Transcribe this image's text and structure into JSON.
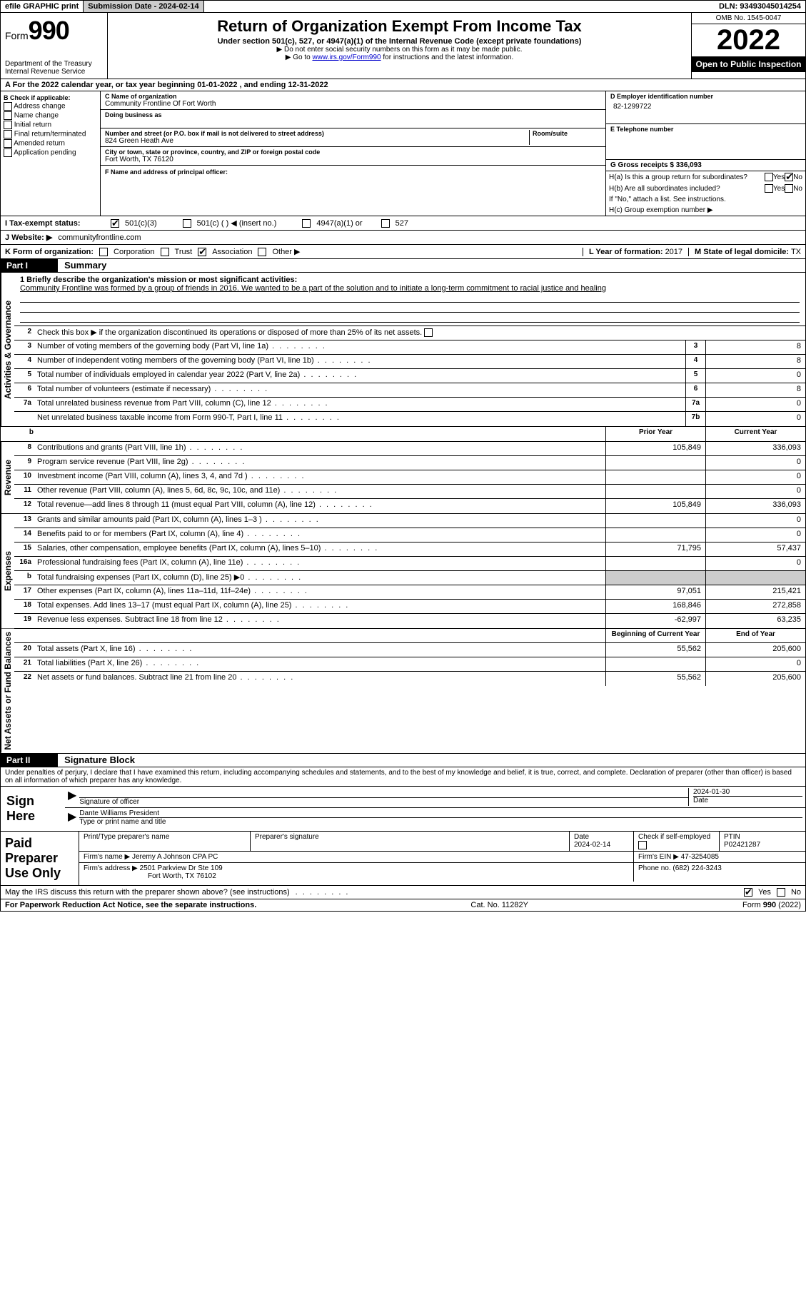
{
  "topBar": {
    "efile": "efile GRAPHIC print",
    "submission": "Submission Date - 2024-02-14",
    "dln": "DLN: 93493045014254"
  },
  "header": {
    "formWord": "Form",
    "formNum": "990",
    "dept": "Department of the Treasury",
    "irs": "Internal Revenue Service",
    "title": "Return of Organization Exempt From Income Tax",
    "sub": "Under section 501(c), 527, or 4947(a)(1) of the Internal Revenue Code (except private foundations)",
    "note1": "▶ Do not enter social security numbers on this form as it may be made public.",
    "note2Prefix": "▶ Go to ",
    "note2Link": "www.irs.gov/Form990",
    "note2Suffix": " for instructions and the latest information.",
    "omb": "OMB No. 1545-0047",
    "year": "2022",
    "inspect": "Open to Public Inspection"
  },
  "rowA": {
    "text": "A For the 2022 calendar year, or tax year beginning 01-01-2022    , and ending 12-31-2022"
  },
  "colB": {
    "label": "B Check if applicable:",
    "opts": [
      "Address change",
      "Name change",
      "Initial return",
      "Final return/terminated",
      "Amended return",
      "Application pending"
    ]
  },
  "colC": {
    "nameLabel": "C Name of organization",
    "name": "Community Frontline Of Fort Worth",
    "dbaLabel": "Doing business as",
    "addrLabel": "Number and street (or P.O. box if mail is not delivered to street address)",
    "roomLabel": "Room/suite",
    "addr": "824 Green Heath Ave",
    "cityLabel": "City or town, state or province, country, and ZIP or foreign postal code",
    "city": "Fort Worth, TX  76120",
    "fLabel": "F Name and address of principal officer:"
  },
  "colD": {
    "einLabel": "D Employer identification number",
    "ein": "82-1299722",
    "phoneLabel": "E Telephone number",
    "grossLabel": "G Gross receipts $",
    "gross": "336,093"
  },
  "hBlock": {
    "ha": "H(a)  Is this a group return for subordinates?",
    "hb": "H(b)  Are all subordinates included?",
    "hbNote": "If \"No,\" attach a list. See instructions.",
    "hc": "H(c)  Group exemption number ▶"
  },
  "iRow": {
    "label": "I   Tax-exempt status:",
    "opts": [
      "501(c)(3)",
      "501(c) (  ) ◀ (insert no.)",
      "4947(a)(1) or",
      "527"
    ]
  },
  "jRow": {
    "label": "J   Website: ▶",
    "val": "communityfrontline.com"
  },
  "kRow": {
    "label": "K Form of organization:",
    "opts": [
      "Corporation",
      "Trust",
      "Association",
      "Other ▶"
    ],
    "lLabel": "L Year of formation:",
    "lVal": "2017",
    "mLabel": "M State of legal domicile:",
    "mVal": "TX"
  },
  "part1": {
    "label": "Part I",
    "title": "Summary",
    "line1Label": "1  Briefly describe the organization's mission or most significant activities:",
    "mission": "Community Frontline was formed by a group of friends in 2016. We wanted to be a part of the solution and to initiate a long-term commitment to racial justice and healing",
    "line2": "Check this box ▶      if the organization discontinued its operations or disposed of more than 25% of its net assets."
  },
  "sections": {
    "gov": {
      "label": "Activities & Governance",
      "rows": [
        {
          "n": "3",
          "t": "Number of voting members of the governing body (Part VI, line 1a)",
          "b": "3",
          "v": "8"
        },
        {
          "n": "4",
          "t": "Number of independent voting members of the governing body (Part VI, line 1b)",
          "b": "4",
          "v": "8"
        },
        {
          "n": "5",
          "t": "Total number of individuals employed in calendar year 2022 (Part V, line 2a)",
          "b": "5",
          "v": "0"
        },
        {
          "n": "6",
          "t": "Total number of volunteers (estimate if necessary)",
          "b": "6",
          "v": "8"
        },
        {
          "n": "7a",
          "t": "Total unrelated business revenue from Part VIII, column (C), line 12",
          "b": "7a",
          "v": "0"
        },
        {
          "n": "",
          "t": "Net unrelated business taxable income from Form 990-T, Part I, line 11",
          "b": "7b",
          "v": "0"
        }
      ]
    },
    "headerRow": {
      "b": "b",
      "py": "Prior Year",
      "cy": "Current Year"
    },
    "rev": {
      "label": "Revenue",
      "rows": [
        {
          "n": "8",
          "t": "Contributions and grants (Part VIII, line 1h)",
          "py": "105,849",
          "cy": "336,093"
        },
        {
          "n": "9",
          "t": "Program service revenue (Part VIII, line 2g)",
          "py": "",
          "cy": "0"
        },
        {
          "n": "10",
          "t": "Investment income (Part VIII, column (A), lines 3, 4, and 7d )",
          "py": "",
          "cy": "0"
        },
        {
          "n": "11",
          "t": "Other revenue (Part VIII, column (A), lines 5, 6d, 8c, 9c, 10c, and 11e)",
          "py": "",
          "cy": "0"
        },
        {
          "n": "12",
          "t": "Total revenue—add lines 8 through 11 (must equal Part VIII, column (A), line 12)",
          "py": "105,849",
          "cy": "336,093"
        }
      ]
    },
    "exp": {
      "label": "Expenses",
      "rows": [
        {
          "n": "13",
          "t": "Grants and similar amounts paid (Part IX, column (A), lines 1–3 )",
          "py": "",
          "cy": "0"
        },
        {
          "n": "14",
          "t": "Benefits paid to or for members (Part IX, column (A), line 4)",
          "py": "",
          "cy": "0"
        },
        {
          "n": "15",
          "t": "Salaries, other compensation, employee benefits (Part IX, column (A), lines 5–10)",
          "py": "71,795",
          "cy": "57,437"
        },
        {
          "n": "16a",
          "t": "Professional fundraising fees (Part IX, column (A), line 11e)",
          "py": "",
          "cy": "0"
        },
        {
          "n": "b",
          "t": "Total fundraising expenses (Part IX, column (D), line 25) ▶0",
          "py": "shaded",
          "cy": "shaded"
        },
        {
          "n": "17",
          "t": "Other expenses (Part IX, column (A), lines 11a–11d, 11f–24e)",
          "py": "97,051",
          "cy": "215,421"
        },
        {
          "n": "18",
          "t": "Total expenses. Add lines 13–17 (must equal Part IX, column (A), line 25)",
          "py": "168,846",
          "cy": "272,858"
        },
        {
          "n": "19",
          "t": "Revenue less expenses. Subtract line 18 from line 12",
          "py": "-62,997",
          "cy": "63,235"
        }
      ]
    },
    "netHeader": {
      "py": "Beginning of Current Year",
      "cy": "End of Year"
    },
    "net": {
      "label": "Net Assets or Fund Balances",
      "rows": [
        {
          "n": "20",
          "t": "Total assets (Part X, line 16)",
          "py": "55,562",
          "cy": "205,600"
        },
        {
          "n": "21",
          "t": "Total liabilities (Part X, line 26)",
          "py": "",
          "cy": "0"
        },
        {
          "n": "22",
          "t": "Net assets or fund balances. Subtract line 21 from line 20",
          "py": "55,562",
          "cy": "205,600"
        }
      ]
    }
  },
  "part2": {
    "label": "Part II",
    "title": "Signature Block",
    "declaration": "Under penalties of perjury, I declare that I have examined this return, including accompanying schedules and statements, and to the best of my knowledge and belief, it is true, correct, and complete. Declaration of preparer (other than officer) is based on all information of which preparer has any knowledge."
  },
  "sign": {
    "label": "Sign Here",
    "sigLabel": "Signature of officer",
    "date": "2024-01-30",
    "dateLabel": "Date",
    "name": "Dante Williams  President",
    "nameLabel": "Type or print name and title"
  },
  "paid": {
    "label": "Paid Preparer Use Only",
    "h1": "Print/Type preparer's name",
    "h2": "Preparer's signature",
    "h3": "Date",
    "h3v": "2024-02-14",
    "h4": "Check        if self-employed",
    "h5": "PTIN",
    "h5v": "P02421287",
    "firmLabel": "Firm's name    ▶",
    "firm": "Jeremy A Johnson CPA PC",
    "einLabel": "Firm's EIN ▶",
    "ein": "47-3254085",
    "addrLabel": "Firm's address ▶",
    "addr1": "2501 Parkview Dr Ste 109",
    "addr2": "Fort Worth, TX  76102",
    "phoneLabel": "Phone no.",
    "phone": "(682) 224-3243"
  },
  "discuss": "May the IRS discuss this return with the preparer shown above? (see instructions)",
  "footer": {
    "left": "For Paperwork Reduction Act Notice, see the separate instructions.",
    "mid": "Cat. No. 11282Y",
    "right": "Form 990 (2022)"
  },
  "yesNo": {
    "yes": "Yes",
    "no": "No"
  }
}
